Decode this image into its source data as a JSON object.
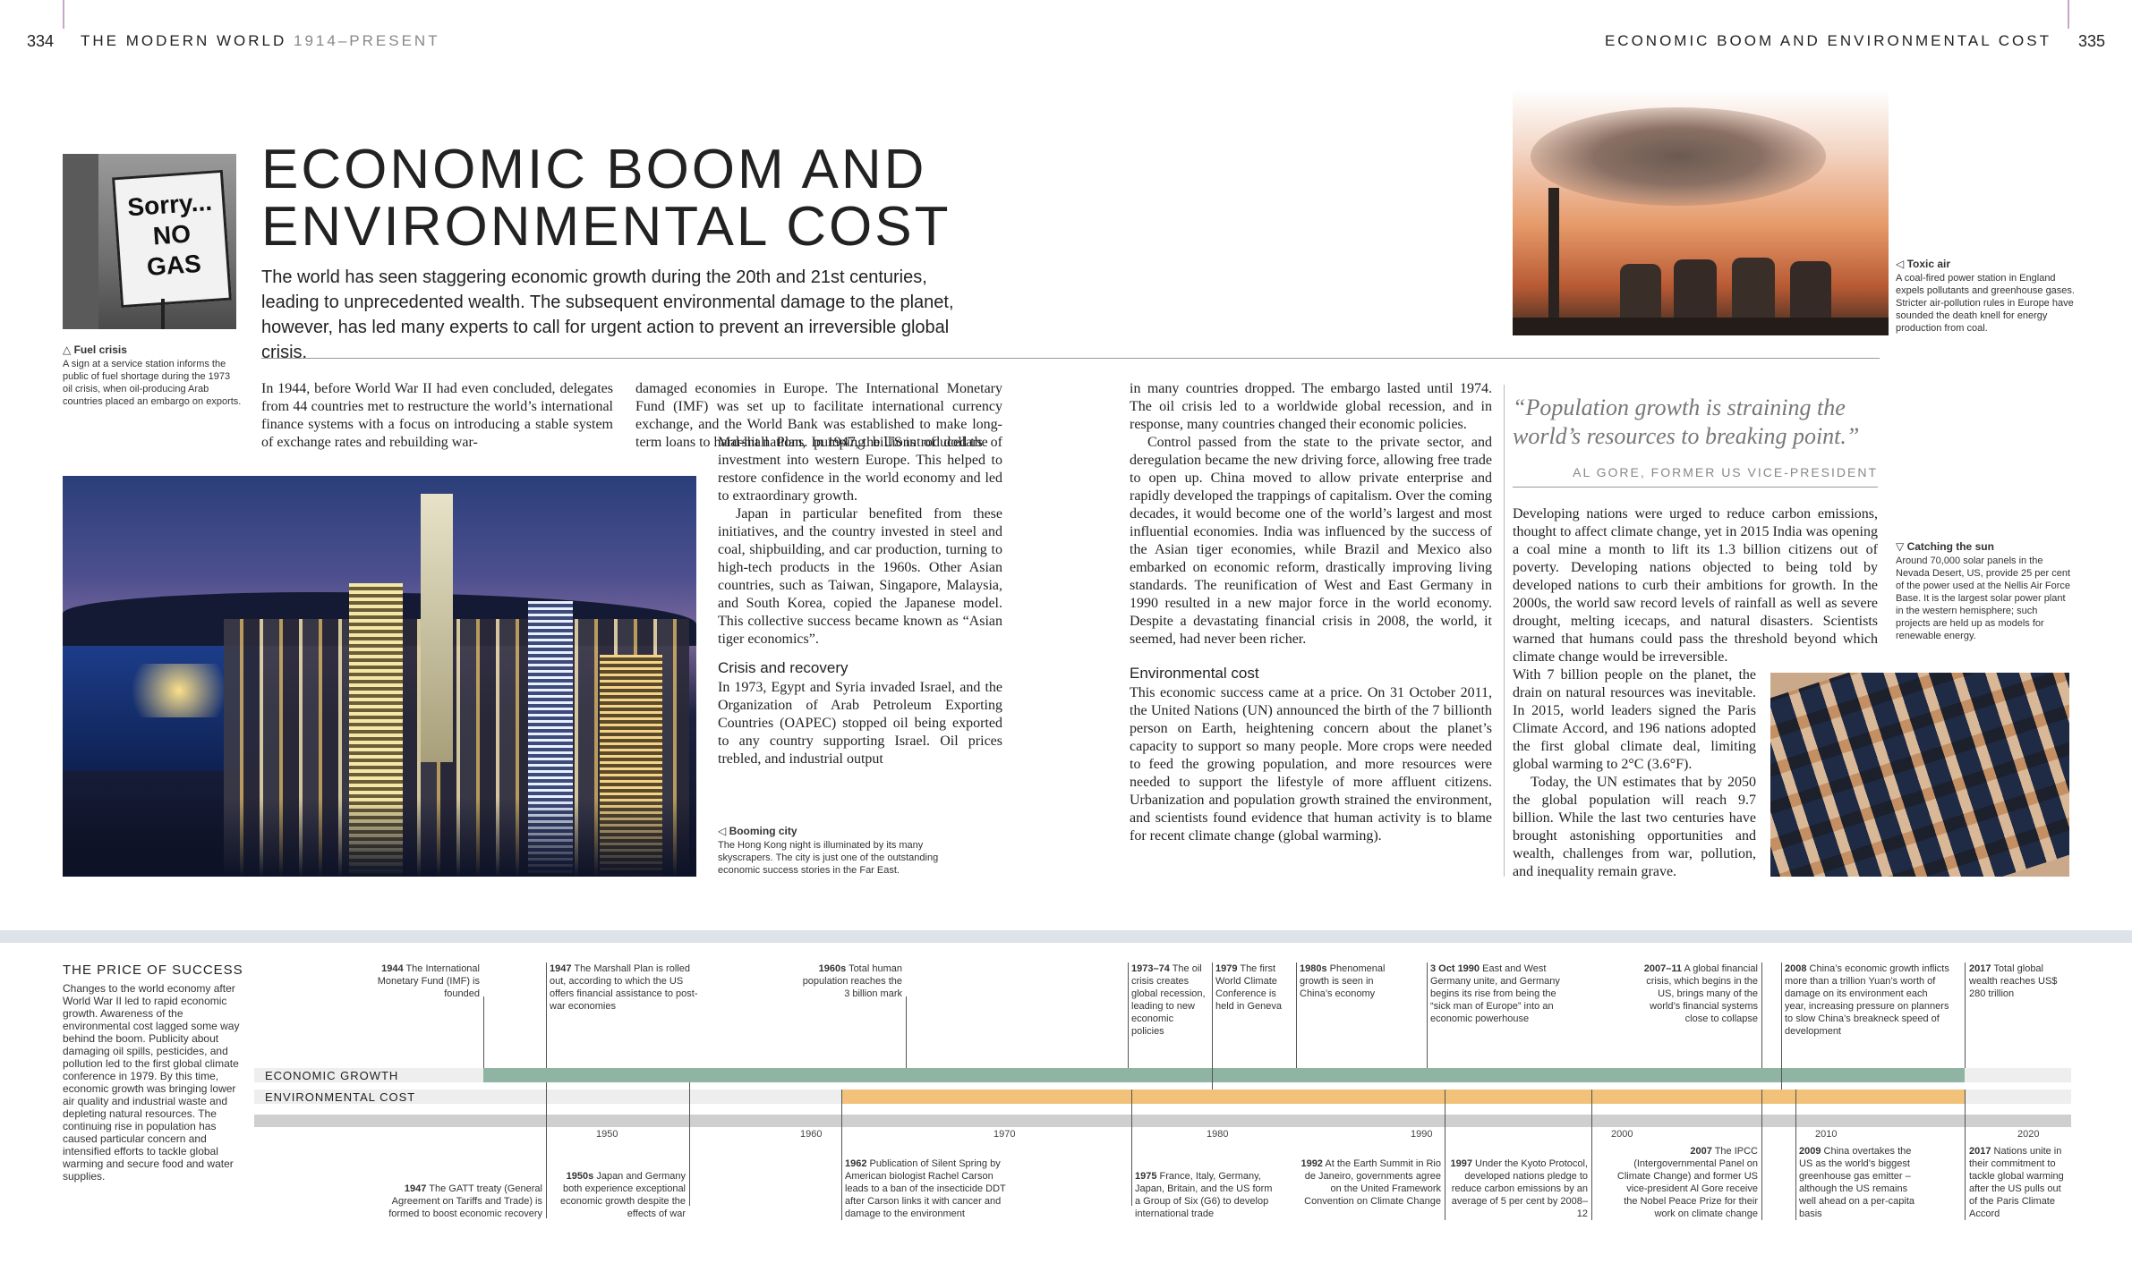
{
  "header": {
    "left_page": "334",
    "left_title": "THE MODERN WORLD",
    "left_period": "1914–PRESENT",
    "right_title": "ECONOMIC BOOM AND ENVIRONMENTAL COST",
    "right_page": "335"
  },
  "title_line1": "ECONOMIC BOOM AND",
  "title_line2": "ENVIRONMENTAL COST",
  "intro": "The world has seen staggering economic growth during the 20th and 21st centuries, leading to unprecedented wealth. The subsequent environmental damage to the planet, however, has led many experts to call for urgent action to prevent an irreversible global crisis.",
  "captions": {
    "fuel_title": "Fuel crisis",
    "fuel_text": "A sign at a service station informs the public of fuel shortage during the 1973 oil crisis, when oil-producing Arab countries placed an embargo on exports.",
    "fuel_sign": "Sorry... NO GAS",
    "toxic_title": "Toxic air",
    "toxic_text": "A coal-fired power station in England expels pollutants and greenhouse gases. Stricter air-pollution rules in Europe have sounded the death knell for energy production from coal.",
    "booming_title": "Booming city",
    "booming_text": "The Hong Kong night is illuminated by its many skyscrapers. The city is just one of the outstanding economic success stories in the Far East.",
    "sun_title": "Catching the sun",
    "sun_text": "Around 70,000 solar panels in the Nevada Desert, US, provide 25 per cent of the power used at the Nellis Air Force Base. It is the largest solar power plant in the western hemisphere; such projects are held up as models for renewable energy."
  },
  "body": {
    "c1": "In 1944, before World War II had even concluded, delegates from 44 countries met to restructure the world’s international finance systems with a focus on introducing a stable system of exchange rates and rebuilding war-",
    "c2a": "damaged economies in Europe. The International Monetary Fund (IMF) was set up to facilitate international currency exchange, and the World Bank was established to make long-term loans to hard-hit nations. In 1947, the US introduced the",
    "c2b": "Marshall Plan, pumping billions of dollars of investment into western Europe. This helped to restore confidence in the world economy and led to extraordinary growth.",
    "c2c": "Japan in particular benefited from these initiatives, and the country invested in steel and coal, shipbuilding, and car production, turning to high-tech products in the 1960s. Other Asian countries, such as Taiwan, Singapore, Malaysia, and South Korea, copied the Japanese model. This collective success became known as “Asian tiger economics”.",
    "crisis_head": "Crisis and recovery",
    "c2d": "In 1973, Egypt and Syria invaded Israel, and the Organization of Arab Petroleum Exporting Countries (OAPEC) stopped oil being exported to any country supporting Israel. Oil prices trebled, and industrial output",
    "c3a": "in many countries dropped. The embargo lasted until 1974. The oil crisis led to a worldwide global recession, and in response, many countries changed their economic policies.",
    "c3b": "Control passed from the state to the private sector, and deregulation became the new driving force, allowing free trade to open up. China moved to allow private enterprise and rapidly developed the trappings of capitalism. Over the coming decades, it would become one of the world’s largest and most influential economies. India was influenced by the success of the Asian tiger economies, while Brazil and Mexico also embarked on economic reform, drastically improving living standards. The reunification of West and East Germany in 1990 resulted in a new major force in the world economy. Despite a devastating financial crisis in 2008, the world, it seemed, had never been richer.",
    "env_head": "Environmental cost",
    "c3c": "This economic success came at a price. On 31 October 2011, the United Nations (UN) announced the birth of the 7 billionth person on Earth, heightening concern about the planet’s capacity to support so many people. More crops were needed to feed the growing population, and more resources were needed to support the lifestyle of more affluent citizens. Urbanization and population growth strained the environment, and scientists found evidence that human activity is to blame for recent climate change (global warming).",
    "quote": "“Population growth is straining the world’s resources to breaking point.”",
    "quote_attr": "AL GORE, FORMER US VICE-PRESIDENT",
    "c4a": "Developing nations were urged to reduce carbon emissions, thought to affect climate change, yet in 2015 India was opening a coal mine a month to lift its 1.3 billion citizens out of poverty. Developing nations objected to being told by developed nations to curb their ambitions for growth. In the 2000s, the world saw record levels of rainfall as well as severe drought, melting icecaps, and natural disasters. Scientists warned that humans could pass the threshold beyond which climate change would be irreversible.",
    "c4b": "With 7 billion people on the planet, the drain on natural resources was inevitable. In 2015, world leaders signed the Paris Climate Accord, and 196 nations adopted the first global climate deal, limiting global warming to 2°C (3.6°F).",
    "c4c": "Today, the UN estimates that by 2050 the global population will reach 9.7 billion. While the last two centuries have brought astonishing opportunities and wealth, challenges from war, pollution, and inequality remain grave."
  },
  "timeline": {
    "side_title": "THE PRICE OF SUCCESS",
    "side_text": "Changes to the world economy after World War II led to rapid economic growth. Awareness of the environmental cost lagged some way behind the boom. Publicity about damaging oil spills, pesticides, and pollution led to the first global climate conference in 1979. By this time, economic growth was bringing lower air quality and industrial waste and depleting natural resources. The continuing rise in population has caused particular concern and intensified efforts to tackle global warming and secure food and water supplies.",
    "bar1": "ECONOMIC GROWTH",
    "bar2": "ENVIRONMENTAL COST",
    "bar_colors": {
      "growth": "#8fb4a3",
      "cost": "#f3c27a",
      "axis": "#cfcfcf"
    },
    "ticks": [
      "1950",
      "1960",
      "1970",
      "1980",
      "1990",
      "2000",
      "2010",
      "2020"
    ],
    "top_events": [
      {
        "year": "1944",
        "text": "The International Monetary Fund (IMF) is founded"
      },
      {
        "year": "1947",
        "text": "The Marshall Plan is rolled out, according to which the US offers financial assistance to post-war economies"
      },
      {
        "year": "1960s",
        "text": "Total human population reaches the 3 billion mark"
      },
      {
        "year": "1973–74",
        "text": "The oil crisis creates global recession, leading to new economic policies"
      },
      {
        "year": "1979",
        "text": "The first World Climate Conference is held in Geneva"
      },
      {
        "year": "1980s",
        "text": "Phenomenal growth is seen in China’s economy"
      },
      {
        "year": "3 Oct 1990",
        "text": "East and West Germany unite, and Germany begins its rise from being the “sick man of Europe” into an economic powerhouse"
      },
      {
        "year": "2007–11",
        "text": "A global financial crisis, which begins in the US, brings many of the world’s financial systems close to collapse"
      },
      {
        "year": "2008",
        "text": "China’s economic growth inflicts more than a trillion Yuan’s worth of damage on its environment each year, increasing pressure on planners to slow China’s breakneck speed of development"
      },
      {
        "year": "2017",
        "text": "Total global wealth reaches US$ 280 trillion"
      }
    ],
    "bottom_events": [
      {
        "year": "1947",
        "text": "The GATT treaty (General Agreement on Tariffs and Trade) is formed to boost economic recovery"
      },
      {
        "year": "1950s",
        "text": "Japan and Germany both experience exceptional economic growth despite the effects of war"
      },
      {
        "year": "1962",
        "text": "Publication of Silent Spring by American biologist Rachel Carson leads to a ban of the insecticide DDT after Carson links it with cancer and damage to the environment"
      },
      {
        "year": "1975",
        "text": "France, Italy, Germany, Japan, Britain, and the US form a Group of Six (G6) to develop international trade"
      },
      {
        "year": "1992",
        "text": "At the Earth Summit in Rio de Janeiro, governments agree on the United Framework Convention on Climate Change"
      },
      {
        "year": "1997",
        "text": "Under the Kyoto Protocol, developed nations pledge to reduce carbon emissions by an average of 5 per cent by 2008–12"
      },
      {
        "year": "2007",
        "text": "The IPCC (Intergovernmental Panel on Climate Change) and former US vice-president Al Gore receive the Nobel Peace Prize for their work on climate change"
      },
      {
        "year": "2009",
        "text": "China overtakes the US as the world’s biggest greenhouse gas emitter – although the US remains well ahead on a per-capita basis"
      },
      {
        "year": "2017",
        "text": "Nations unite in their commitment to tackle global warming after the US pulls out of the Paris Climate Accord"
      }
    ]
  }
}
